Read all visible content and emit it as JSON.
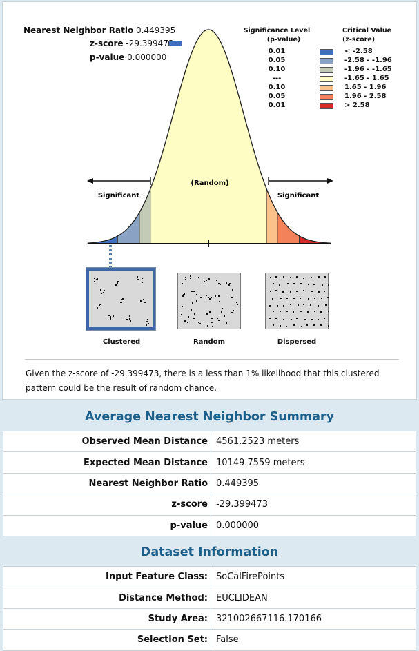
{
  "graphic": {
    "stats": [
      {
        "label": "Nearest Neighbor Ratio",
        "value": "0.449395"
      },
      {
        "label": "z-score",
        "value": "-29.399473"
      },
      {
        "label": "p-value",
        "value": "0.000000"
      }
    ],
    "legend": {
      "sig_header_1": "Significance Level",
      "sig_header_2": "(p-value)",
      "crit_header_1": "Critical Value",
      "crit_header_2": "(z-score)",
      "rows": [
        {
          "sig": "0.01",
          "crit": "< -2.58",
          "color": "#3f6fbf"
        },
        {
          "sig": "0.05",
          "crit": "-2.58 - -1.96",
          "color": "#8aa3c4"
        },
        {
          "sig": "0.10",
          "crit": "-1.96 - -1.65",
          "color": "#c3cbb6"
        },
        {
          "sig": "---",
          "crit": "-1.65 - 1.65",
          "color": "#fdfdc4"
        },
        {
          "sig": "0.10",
          "crit": "1.65 - 1.96",
          "color": "#fbc28c"
        },
        {
          "sig": "0.05",
          "crit": "1.96 - 2.58",
          "color": "#f3825a"
        },
        {
          "sig": "0.01",
          "crit": "> 2.58",
          "color": "#d42a2a"
        }
      ]
    },
    "curve_labels": {
      "random": "(Random)",
      "significant_left": "Significant",
      "significant_right": "Significant"
    },
    "patterns": [
      {
        "label": "Clustered"
      },
      {
        "label": "Random"
      },
      {
        "label": "Dispersed"
      }
    ],
    "colors": {
      "marker": "#3f6fbf",
      "selected_border": "#3f66a4",
      "title_blue": "#1b5f8a"
    },
    "interpretation": "Given the z-score of -29.399473, there is a less than 1% likelihood that this clustered pattern could be the result of random chance."
  },
  "summary": {
    "title": "Average Nearest Neighbor Summary",
    "rows": [
      {
        "key": "Observed Mean Distance",
        "value": "4561.2523 meters"
      },
      {
        "key": "Expected Mean Distance",
        "value": "10149.7559 meters"
      },
      {
        "key": "Nearest Neighbor Ratio",
        "value": "0.449395"
      },
      {
        "key": "z-score",
        "value": "-29.399473"
      },
      {
        "key": "p-value",
        "value": "0.000000"
      }
    ]
  },
  "dataset": {
    "title": "Dataset Information",
    "rows": [
      {
        "key": "Input Feature Class:",
        "value": "SoCalFirePoints"
      },
      {
        "key": "Distance Method:",
        "value": "EUCLIDEAN"
      },
      {
        "key": "Study Area:",
        "value": "321002667116.170166"
      },
      {
        "key": "Selection Set:",
        "value": "False"
      }
    ]
  }
}
